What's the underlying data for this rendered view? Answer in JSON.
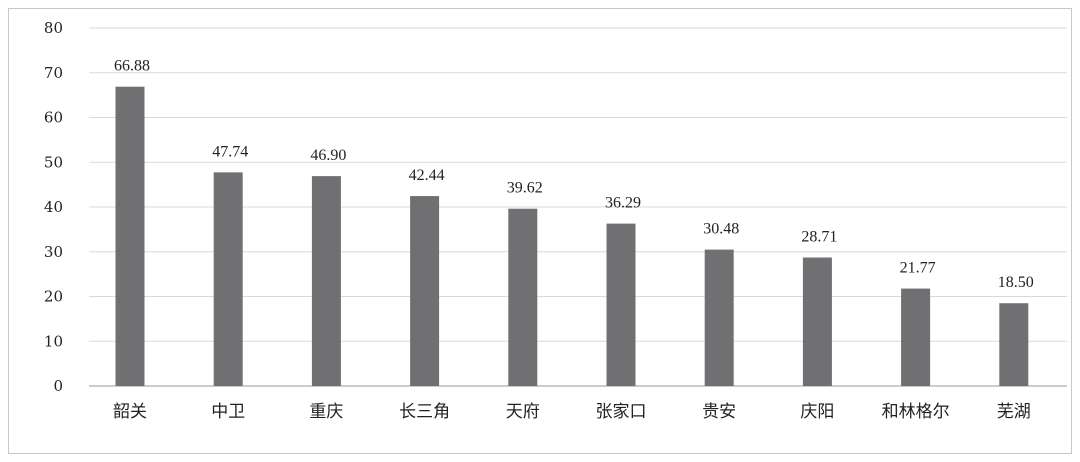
{
  "chart_data": {
    "type": "bar",
    "categories": [
      "韶关",
      "中卫",
      "重庆",
      "长三角",
      "天府",
      "张家口",
      "贵安",
      "庆阳",
      "和林格尔",
      "芜湖"
    ],
    "values": [
      66.88,
      47.74,
      46.9,
      42.44,
      39.62,
      36.29,
      30.48,
      28.71,
      21.77,
      18.5
    ],
    "data_labels": [
      "66.88",
      "47.74",
      "46.90",
      "42.44",
      "39.62",
      "36.29",
      "30.48",
      "28.71",
      "21.77",
      "18.50"
    ],
    "y_ticks": [
      0,
      10,
      20,
      30,
      40,
      50,
      60,
      70,
      80
    ],
    "ylim": [
      0,
      80
    ],
    "grid": true,
    "legend": "none",
    "colors": {
      "bar": "#707072",
      "grid": "#d9d9d9",
      "frame": "#c8c8c8"
    }
  }
}
